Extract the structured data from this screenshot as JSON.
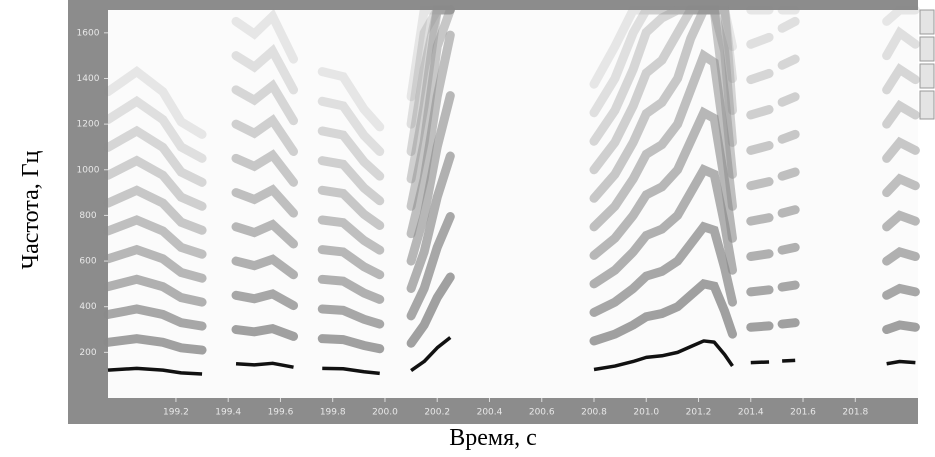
{
  "chart_data": {
    "type": "line",
    "xlabel": "Время, с",
    "ylabel": "Частота, Гц",
    "xlim": [
      198.94,
      202.04
    ],
    "ylim": [
      0,
      1700
    ],
    "xticks": [
      199.2,
      199.4,
      199.6,
      199.8,
      {
        "value": 200.0,
        "label": "200.0"
      },
      200.2,
      200.4,
      200.6,
      200.8,
      {
        "value": 201.0,
        "label": "201.0"
      },
      201.2,
      201.4,
      201.6,
      201.8
    ],
    "yticks": [
      200,
      400,
      600,
      800,
      1000,
      1200,
      1400,
      1600
    ],
    "x": [
      198.94,
      199.05,
      199.15,
      199.22,
      199.3,
      199.36,
      199.43,
      199.5,
      199.57,
      199.65,
      199.7,
      199.76,
      199.84,
      199.92,
      199.98,
      200.04,
      200.1,
      200.15,
      200.2,
      200.25,
      200.5,
      200.8,
      200.88,
      200.95,
      201.0,
      201.06,
      201.12,
      201.17,
      201.22,
      201.26,
      201.3,
      201.33,
      201.37,
      201.4,
      201.47,
      201.5,
      201.52,
      201.57,
      201.75,
      201.92,
      201.97,
      202.03
    ],
    "series": [
      {
        "color": "#111111",
        "values": [
          122,
          130,
          122,
          110,
          105,
          null,
          150,
          145,
          152,
          135,
          null,
          130,
          128,
          115,
          108,
          null,
          120,
          160,
          220,
          265,
          null,
          125,
          140,
          160,
          178,
          185,
          200,
          225,
          250,
          245,
          190,
          140,
          null,
          155,
          158,
          null,
          162,
          165,
          null,
          150,
          160,
          155
        ]
      }
    ]
  }
}
